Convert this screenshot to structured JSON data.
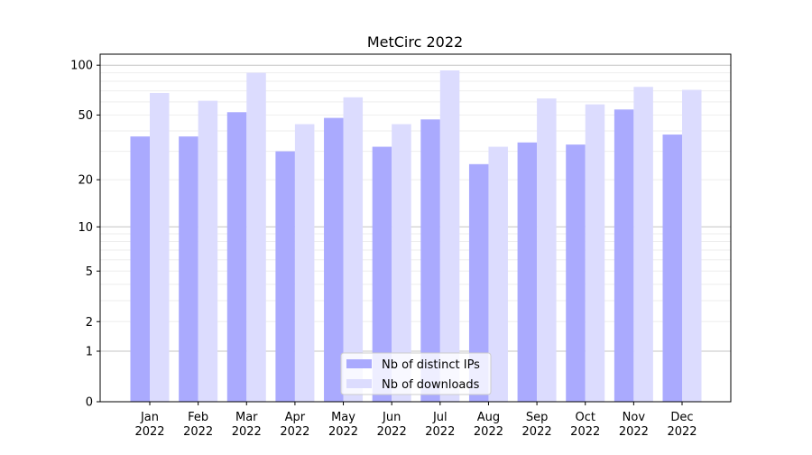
{
  "chart_data": {
    "type": "bar",
    "title": "MetCirc 2022",
    "xlabel": "",
    "ylabel": "",
    "yscale": "log(1+y)",
    "ylim": [
      0,
      120
    ],
    "yticks": [
      0,
      1,
      2,
      5,
      10,
      20,
      50,
      100
    ],
    "grid": true,
    "legend_position": "bottom-center",
    "categories": [
      "Jan\n2022",
      "Feb\n2022",
      "Mar\n2022",
      "Apr\n2022",
      "May\n2022",
      "Jun\n2022",
      "Jul\n2022",
      "Aug\n2022",
      "Sep\n2022",
      "Oct\n2022",
      "Nov\n2022",
      "Dec\n2022"
    ],
    "series": [
      {
        "name": "Nb of distinct IPs",
        "color": "#aaaafe",
        "values": [
          37,
          37,
          52,
          30,
          48,
          32,
          47,
          25,
          34,
          33,
          54,
          38
        ]
      },
      {
        "name": "Nb of downloads",
        "color": "#dcdcfe",
        "values": [
          68,
          61,
          90,
          44,
          64,
          44,
          93,
          32,
          63,
          58,
          74,
          71
        ]
      }
    ]
  }
}
